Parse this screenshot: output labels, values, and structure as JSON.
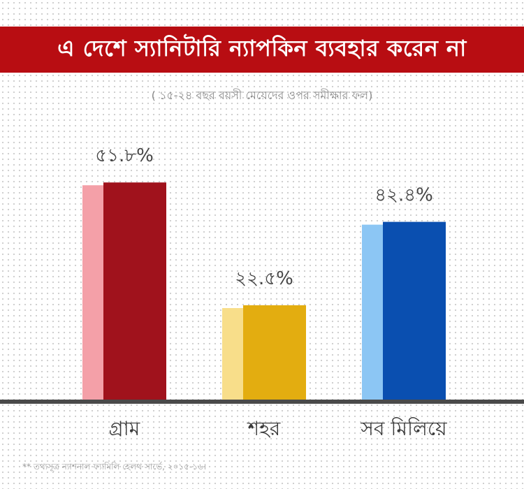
{
  "title": "এ দেশে স্যানিটারি ন্যাপকিন ব্যবহার করেন না",
  "subtitle": "( ১৫-২৪ বছর বয়সী মেয়েদের ওপর সমীক্ষার ফল)",
  "footnote": "** তথ্যসূত্র ন্যাশনাল ফ্যামিলি হেলথ সার্ভে, ২০১৫-১৬।",
  "chart_data": {
    "type": "bar",
    "categories": [
      "গ্রাম",
      "শহর",
      "সব মিলিয়ে"
    ],
    "values": [
      51.8,
      22.5,
      42.4
    ],
    "value_labels": [
      "৫১.৮%",
      "২২.৫%",
      "৪২.৪%"
    ],
    "ylim": [
      0,
      60
    ],
    "grid": false,
    "colors": [
      {
        "front": "#a0121c",
        "side": "#f4a0a8"
      },
      {
        "front": "#e3ad10",
        "side": "#f8de8a"
      },
      {
        "front": "#0a4fb0",
        "side": "#8cc6f4"
      }
    ]
  }
}
